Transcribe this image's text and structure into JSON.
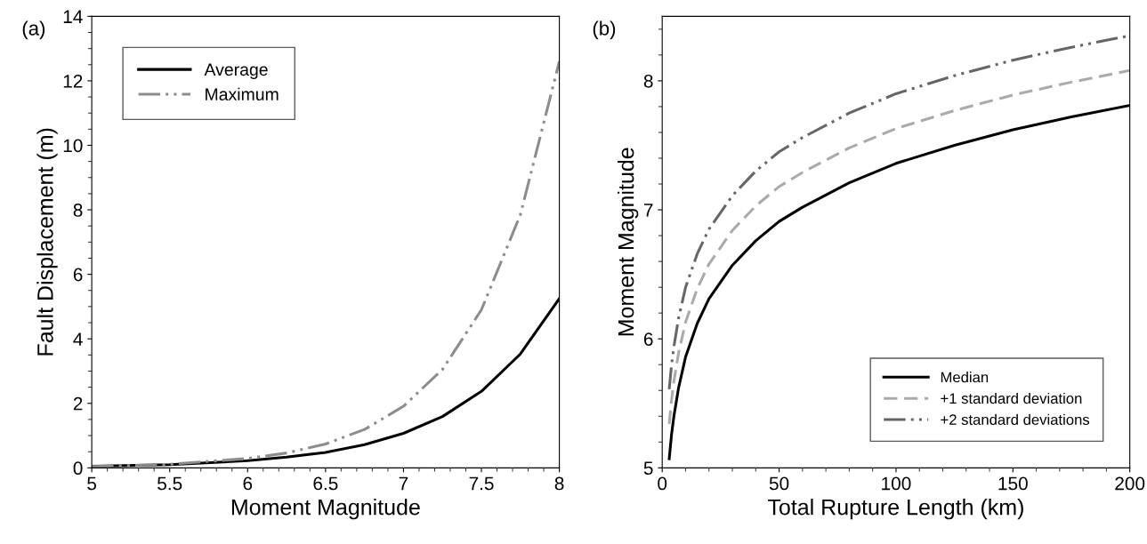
{
  "chart_data": [
    {
      "type": "line",
      "xlabel": "Moment Magnitude",
      "ylabel": "Fault Displacement (m)",
      "annotations": [
        "(a)"
      ],
      "xlim": [
        5,
        8
      ],
      "xticks": [
        5,
        5.5,
        6,
        6.5,
        7,
        7.5,
        8
      ],
      "ylim": [
        0,
        14
      ],
      "yticks": [
        0,
        2,
        4,
        6,
        8,
        10,
        12,
        14
      ],
      "grid": false,
      "legend": "top left",
      "x": [
        5,
        5.5,
        6,
        6.25,
        6.5,
        6.75,
        7,
        7.25,
        7.5,
        7.75,
        8
      ],
      "series": [
        {
          "name": "Average",
          "color": "#000000",
          "line_style": "solid",
          "values": [
            0.05,
            0.1,
            0.22,
            0.33,
            0.48,
            0.72,
            1.07,
            1.59,
            2.37,
            3.53,
            5.25
          ]
        },
        {
          "name": "Maximum",
          "color": "#8c8c8c",
          "line_style": "dashdotdot",
          "values": [
            0.04,
            0.11,
            0.29,
            0.46,
            0.74,
            1.19,
            1.91,
            3.05,
            4.9,
            7.85,
            12.6
          ]
        }
      ]
    },
    {
      "type": "line",
      "xlabel": "Total Rupture Length (km)",
      "ylabel": "Moment Magnitude",
      "annotations": [
        "(b)"
      ],
      "xlim": [
        0,
        200
      ],
      "xticks": [
        0,
        50,
        100,
        150,
        200
      ],
      "ylim": [
        5,
        8.5
      ],
      "yticks": [
        5,
        6,
        7,
        8
      ],
      "grid": false,
      "legend": "bottom right",
      "x": [
        3,
        4,
        5,
        7,
        10,
        15,
        20,
        30,
        40,
        50,
        60,
        80,
        100,
        125,
        150,
        175,
        200
      ],
      "series": [
        {
          "name": "Median",
          "color": "#000000",
          "line_style": "solid",
          "values": [
            5.07,
            5.26,
            5.4,
            5.62,
            5.86,
            6.12,
            6.31,
            6.57,
            6.76,
            6.91,
            7.02,
            7.21,
            7.36,
            7.5,
            7.62,
            7.72,
            7.81
          ]
        },
        {
          "name": "+1 standard deviation",
          "color": "#aaaaaa",
          "line_style": "dashed",
          "values": [
            5.34,
            5.53,
            5.67,
            5.89,
            6.13,
            6.39,
            6.58,
            6.84,
            7.03,
            7.18,
            7.29,
            7.48,
            7.63,
            7.77,
            7.89,
            7.99,
            8.08
          ]
        },
        {
          "name": "+2 standard deviations",
          "color": "#666666",
          "line_style": "dashdotdot",
          "values": [
            5.61,
            5.8,
            5.94,
            6.16,
            6.4,
            6.66,
            6.85,
            7.11,
            7.3,
            7.45,
            7.56,
            7.75,
            7.9,
            8.04,
            8.16,
            8.26,
            8.35
          ]
        }
      ]
    }
  ]
}
